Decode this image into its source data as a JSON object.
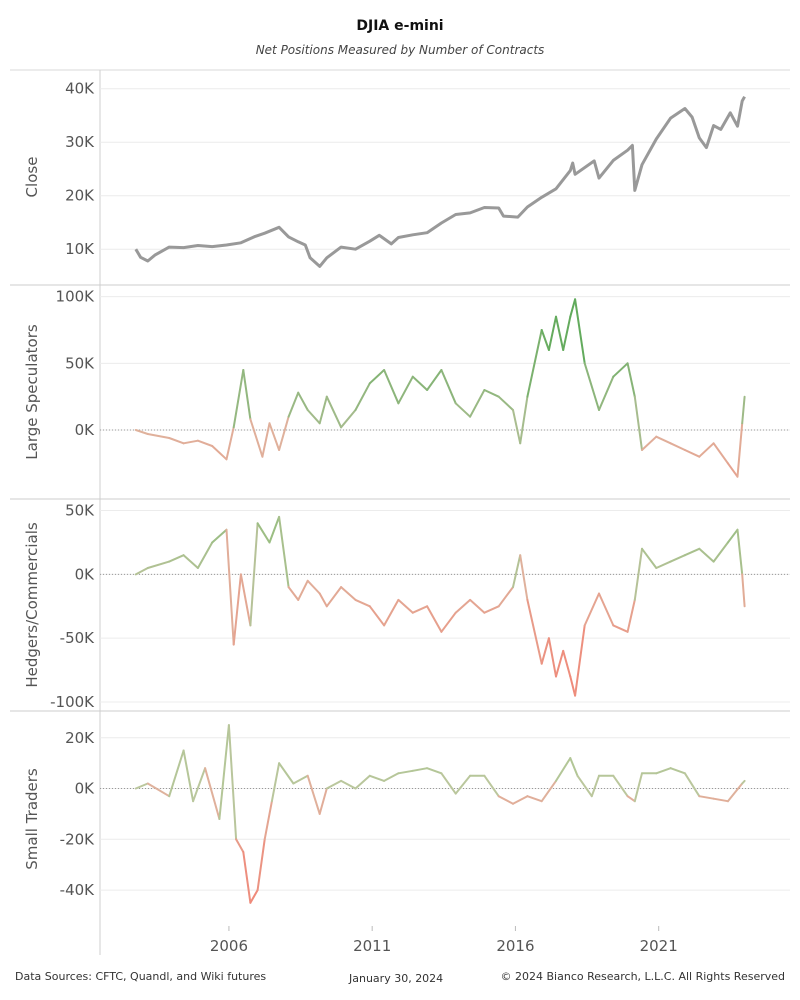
{
  "chart_data": {
    "type": "line",
    "title": "DJIA e-mini",
    "subtitle": "Net Positions Measured by Number of Contracts",
    "x_ticks": [
      "2006",
      "2011",
      "2016",
      "2021"
    ],
    "xlim": [
      "2001-07",
      "2025-08"
    ],
    "panels": [
      {
        "name": "Close",
        "color": "#999999",
        "ylim": [
          5000,
          42000
        ],
        "y_ticks": [
          {
            "v": 10000,
            "label": "10K"
          },
          {
            "v": 20000,
            "label": "20K"
          },
          {
            "v": 30000,
            "label": "30K"
          },
          {
            "v": 40000,
            "label": "40K"
          }
        ],
        "zero_line": false,
        "points": [
          [
            "2002-10",
            10000
          ],
          [
            "2002-12",
            8500
          ],
          [
            "2003-03",
            7800
          ],
          [
            "2003-06",
            8900
          ],
          [
            "2003-12",
            10400
          ],
          [
            "2004-06",
            10300
          ],
          [
            "2004-12",
            10700
          ],
          [
            "2005-06",
            10500
          ],
          [
            "2005-12",
            10800
          ],
          [
            "2006-06",
            11200
          ],
          [
            "2006-12",
            12400
          ],
          [
            "2007-04",
            13000
          ],
          [
            "2007-10",
            14100
          ],
          [
            "2008-02",
            12300
          ],
          [
            "2008-06",
            11400
          ],
          [
            "2008-09",
            10800
          ],
          [
            "2008-11",
            8400
          ],
          [
            "2009-03",
            6800
          ],
          [
            "2009-06",
            8400
          ],
          [
            "2009-12",
            10400
          ],
          [
            "2010-06",
            10000
          ],
          [
            "2010-12",
            11500
          ],
          [
            "2011-04",
            12600
          ],
          [
            "2011-09",
            11000
          ],
          [
            "2011-12",
            12200
          ],
          [
            "2012-06",
            12700
          ],
          [
            "2012-12",
            13100
          ],
          [
            "2013-06",
            14900
          ],
          [
            "2013-12",
            16500
          ],
          [
            "2014-06",
            16800
          ],
          [
            "2014-12",
            17800
          ],
          [
            "2015-06",
            17700
          ],
          [
            "2015-08",
            16200
          ],
          [
            "2016-02",
            16000
          ],
          [
            "2016-06",
            17900
          ],
          [
            "2016-12",
            19700
          ],
          [
            "2017-06",
            21300
          ],
          [
            "2017-12",
            24700
          ],
          [
            "2018-01",
            26100
          ],
          [
            "2018-02",
            24000
          ],
          [
            "2018-10",
            26500
          ],
          [
            "2018-12",
            23300
          ],
          [
            "2019-06",
            26600
          ],
          [
            "2019-12",
            28500
          ],
          [
            "2020-02",
            29400
          ],
          [
            "2020-03",
            21000
          ],
          [
            "2020-06",
            25800
          ],
          [
            "2020-12",
            30600
          ],
          [
            "2021-06",
            34500
          ],
          [
            "2021-12",
            36300
          ],
          [
            "2022-03",
            34700
          ],
          [
            "2022-06",
            30800
          ],
          [
            "2022-09",
            29000
          ],
          [
            "2022-12",
            33100
          ],
          [
            "2023-03",
            32400
          ],
          [
            "2023-07",
            35500
          ],
          [
            "2023-10",
            33000
          ],
          [
            "2023-12",
            37700
          ],
          [
            "2024-01",
            38500
          ]
        ]
      },
      {
        "name": "Large Speculators",
        "color_neg": "#ef8a7a",
        "color_pos": "#5faa5a",
        "ylim": [
          -45000,
          102000
        ],
        "y_ticks": [
          {
            "v": 0,
            "label": "0K"
          },
          {
            "v": 50000,
            "label": "50K"
          },
          {
            "v": 100000,
            "label": "100K"
          }
        ],
        "zero_line": true,
        "points": [
          [
            "2002-10",
            0
          ],
          [
            "2003-03",
            -3000
          ],
          [
            "2003-12",
            -6000
          ],
          [
            "2004-06",
            -10000
          ],
          [
            "2004-12",
            -8000
          ],
          [
            "2005-06",
            -12000
          ],
          [
            "2005-12",
            -22000
          ],
          [
            "2006-03",
            2000
          ],
          [
            "2006-07",
            45000
          ],
          [
            "2006-10",
            8000
          ],
          [
            "2007-03",
            -20000
          ],
          [
            "2007-06",
            5000
          ],
          [
            "2007-10",
            -15000
          ],
          [
            "2008-02",
            10000
          ],
          [
            "2008-06",
            28000
          ],
          [
            "2008-10",
            15000
          ],
          [
            "2009-03",
            5000
          ],
          [
            "2009-06",
            25000
          ],
          [
            "2009-12",
            2000
          ],
          [
            "2010-06",
            15000
          ],
          [
            "2010-12",
            35000
          ],
          [
            "2011-06",
            45000
          ],
          [
            "2011-12",
            20000
          ],
          [
            "2012-06",
            40000
          ],
          [
            "2012-12",
            30000
          ],
          [
            "2013-06",
            45000
          ],
          [
            "2013-12",
            20000
          ],
          [
            "2014-06",
            10000
          ],
          [
            "2014-12",
            30000
          ],
          [
            "2015-06",
            25000
          ],
          [
            "2015-12",
            15000
          ],
          [
            "2016-03",
            -10000
          ],
          [
            "2016-06",
            25000
          ],
          [
            "2016-12",
            75000
          ],
          [
            "2017-03",
            60000
          ],
          [
            "2017-06",
            85000
          ],
          [
            "2017-09",
            60000
          ],
          [
            "2017-12",
            85000
          ],
          [
            "2018-02",
            98000
          ],
          [
            "2018-06",
            50000
          ],
          [
            "2018-12",
            15000
          ],
          [
            "2019-06",
            40000
          ],
          [
            "2019-12",
            50000
          ],
          [
            "2020-03",
            25000
          ],
          [
            "2020-06",
            -15000
          ],
          [
            "2020-12",
            -5000
          ],
          [
            "2021-06",
            -10000
          ],
          [
            "2021-12",
            -15000
          ],
          [
            "2022-06",
            -20000
          ],
          [
            "2022-12",
            -10000
          ],
          [
            "2023-06",
            -25000
          ],
          [
            "2023-10",
            -35000
          ],
          [
            "2023-12",
            5000
          ],
          [
            "2024-01",
            25000
          ]
        ]
      },
      {
        "name": "Hedgers/Commercials",
        "color_neg": "#ef8a7a",
        "color_pos": "#7ab86a",
        "ylim": [
          -100000,
          52000
        ],
        "y_ticks": [
          {
            "v": -100000,
            "label": "-100K"
          },
          {
            "v": -50000,
            "label": "-50K"
          },
          {
            "v": 0,
            "label": "0K"
          },
          {
            "v": 50000,
            "label": "50K"
          }
        ],
        "zero_line": true,
        "points": [
          [
            "2002-10",
            0
          ],
          [
            "2003-03",
            5000
          ],
          [
            "2003-12",
            10000
          ],
          [
            "2004-06",
            15000
          ],
          [
            "2004-12",
            5000
          ],
          [
            "2005-06",
            25000
          ],
          [
            "2005-12",
            35000
          ],
          [
            "2006-03",
            -55000
          ],
          [
            "2006-06",
            0
          ],
          [
            "2006-10",
            -40000
          ],
          [
            "2007-01",
            40000
          ],
          [
            "2007-06",
            25000
          ],
          [
            "2007-10",
            45000
          ],
          [
            "2008-02",
            -10000
          ],
          [
            "2008-06",
            -20000
          ],
          [
            "2008-10",
            -5000
          ],
          [
            "2009-03",
            -15000
          ],
          [
            "2009-06",
            -25000
          ],
          [
            "2009-12",
            -10000
          ],
          [
            "2010-06",
            -20000
          ],
          [
            "2010-12",
            -25000
          ],
          [
            "2011-06",
            -40000
          ],
          [
            "2011-12",
            -20000
          ],
          [
            "2012-06",
            -30000
          ],
          [
            "2012-12",
            -25000
          ],
          [
            "2013-06",
            -45000
          ],
          [
            "2013-12",
            -30000
          ],
          [
            "2014-06",
            -20000
          ],
          [
            "2014-12",
            -30000
          ],
          [
            "2015-06",
            -25000
          ],
          [
            "2015-12",
            -10000
          ],
          [
            "2016-03",
            15000
          ],
          [
            "2016-06",
            -20000
          ],
          [
            "2016-12",
            -70000
          ],
          [
            "2017-03",
            -50000
          ],
          [
            "2017-06",
            -80000
          ],
          [
            "2017-09",
            -60000
          ],
          [
            "2017-12",
            -80000
          ],
          [
            "2018-02",
            -95000
          ],
          [
            "2018-06",
            -40000
          ],
          [
            "2018-12",
            -15000
          ],
          [
            "2019-06",
            -40000
          ],
          [
            "2019-12",
            -45000
          ],
          [
            "2020-03",
            -20000
          ],
          [
            "2020-06",
            20000
          ],
          [
            "2020-12",
            5000
          ],
          [
            "2021-06",
            10000
          ],
          [
            "2021-12",
            15000
          ],
          [
            "2022-06",
            20000
          ],
          [
            "2022-12",
            10000
          ],
          [
            "2023-06",
            25000
          ],
          [
            "2023-10",
            35000
          ],
          [
            "2023-12",
            0
          ],
          [
            "2024-01",
            -25000
          ]
        ]
      },
      {
        "name": "Small Traders",
        "color_neg": "#ef8a7a",
        "color_pos": "#8cc47c",
        "ylim": [
          -51000,
          27000
        ],
        "y_ticks": [
          {
            "v": -40000,
            "label": "-40K"
          },
          {
            "v": -20000,
            "label": "-20K"
          },
          {
            "v": 0,
            "label": "0K"
          },
          {
            "v": 20000,
            "label": "20K"
          }
        ],
        "zero_line": true,
        "points": [
          [
            "2002-10",
            0
          ],
          [
            "2003-03",
            2000
          ],
          [
            "2003-12",
            -3000
          ],
          [
            "2004-06",
            15000
          ],
          [
            "2004-10",
            -5000
          ],
          [
            "2005-03",
            8000
          ],
          [
            "2005-09",
            -12000
          ],
          [
            "2006-01",
            25000
          ],
          [
            "2006-04",
            -20000
          ],
          [
            "2006-07",
            -25000
          ],
          [
            "2006-10",
            -45000
          ],
          [
            "2007-01",
            -40000
          ],
          [
            "2007-04",
            -20000
          ],
          [
            "2007-07",
            -5000
          ],
          [
            "2007-10",
            10000
          ],
          [
            "2008-04",
            2000
          ],
          [
            "2008-10",
            5000
          ],
          [
            "2009-03",
            -10000
          ],
          [
            "2009-06",
            0
          ],
          [
            "2009-12",
            3000
          ],
          [
            "2010-06",
            0
          ],
          [
            "2010-12",
            5000
          ],
          [
            "2011-06",
            3000
          ],
          [
            "2011-12",
            6000
          ],
          [
            "2012-06",
            7000
          ],
          [
            "2012-12",
            8000
          ],
          [
            "2013-06",
            6000
          ],
          [
            "2013-12",
            -2000
          ],
          [
            "2014-06",
            5000
          ],
          [
            "2014-12",
            5000
          ],
          [
            "2015-06",
            -3000
          ],
          [
            "2015-12",
            -6000
          ],
          [
            "2016-06",
            -3000
          ],
          [
            "2016-12",
            -5000
          ],
          [
            "2017-06",
            3000
          ],
          [
            "2017-12",
            12000
          ],
          [
            "2018-03",
            5000
          ],
          [
            "2018-09",
            -3000
          ],
          [
            "2018-12",
            5000
          ],
          [
            "2019-06",
            5000
          ],
          [
            "2019-12",
            -3000
          ],
          [
            "2020-03",
            -5000
          ],
          [
            "2020-06",
            6000
          ],
          [
            "2020-12",
            6000
          ],
          [
            "2021-06",
            8000
          ],
          [
            "2021-12",
            6000
          ],
          [
            "2022-06",
            -3000
          ],
          [
            "2022-12",
            -4000
          ],
          [
            "2023-06",
            -5000
          ],
          [
            "2023-12",
            2000
          ],
          [
            "2024-01",
            3000
          ]
        ]
      }
    ]
  },
  "footer": {
    "sources": "Data Sources: CFTC, Quandl, and Wiki futures",
    "date": "January 30, 2024",
    "copyright": "© 2024 Bianco Research, L.L.C. All Rights Reserved"
  }
}
